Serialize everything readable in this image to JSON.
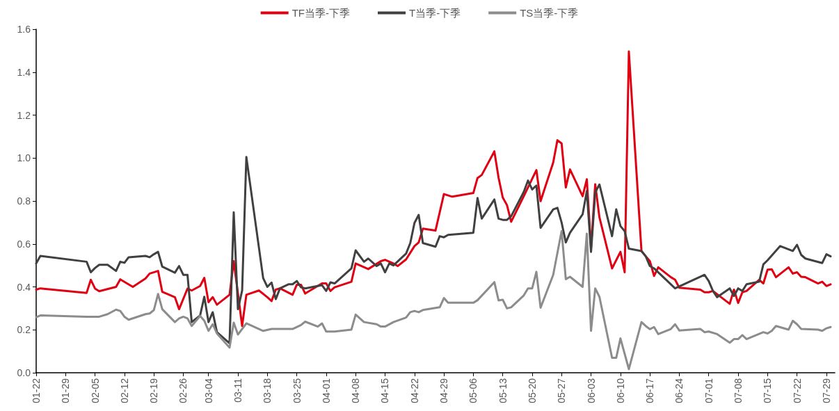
{
  "chart_data": {
    "type": "line",
    "legend": "top",
    "grid": false,
    "marker": "none",
    "line_style": "solid",
    "xlim": [
      "--01-22",
      "--07-31"
    ],
    "xticks": [
      {
        "value": "--01-22",
        "label": "01-22"
      },
      {
        "value": "--01-29",
        "label": "01-29"
      },
      {
        "value": "--02-05",
        "label": "02-05"
      },
      {
        "value": "--02-12",
        "label": "02-12"
      },
      {
        "value": "--02-19",
        "label": "02-19"
      },
      {
        "value": "--02-26",
        "label": "02-26"
      },
      {
        "value": "--03-04",
        "label": "03-04"
      },
      {
        "value": "--03-11",
        "label": "03-11"
      },
      {
        "value": "--03-18",
        "label": "03-18"
      },
      {
        "value": "--03-25",
        "label": "03-25"
      },
      {
        "value": "--04-01",
        "label": "04-01"
      },
      {
        "value": "--04-08",
        "label": "04-08"
      },
      {
        "value": "--04-15",
        "label": "04-15"
      },
      {
        "value": "--04-22",
        "label": "04-22"
      },
      {
        "value": "--04-29",
        "label": "04-29"
      },
      {
        "value": "--05-06",
        "label": "05-06"
      },
      {
        "value": "--05-13",
        "label": "05-13"
      },
      {
        "value": "--05-20",
        "label": "05-20"
      },
      {
        "value": "--05-27",
        "label": "05-27"
      },
      {
        "value": "--06-03",
        "label": "06-03"
      },
      {
        "value": "--06-10",
        "label": "06-10"
      },
      {
        "value": "--06-17",
        "label": "06-17"
      },
      {
        "value": "--06-24",
        "label": "06-24"
      },
      {
        "value": "--07-01",
        "label": "07-01"
      },
      {
        "value": "--07-08",
        "label": "07-08"
      },
      {
        "value": "--07-15",
        "label": "07-15"
      },
      {
        "value": "--07-22",
        "label": "07-22"
      },
      {
        "value": "--07-29",
        "label": "07-29"
      }
    ],
    "ylim": [
      0,
      1.6
    ],
    "yticks": [
      {
        "value": 0,
        "label": "0.0"
      },
      {
        "value": 0.2,
        "label": "0.2"
      },
      {
        "value": 0.4,
        "label": "0.4"
      },
      {
        "value": 0.6,
        "label": "0.6"
      },
      {
        "value": 0.8,
        "label": "0.8"
      },
      {
        "value": 1,
        "label": "1.0"
      },
      {
        "value": 1.2,
        "label": "1.2"
      },
      {
        "value": 1.4,
        "label": "1.4"
      },
      {
        "value": 1.6,
        "label": "1.6"
      }
    ],
    "series": [
      {
        "name": "TF当季-下季",
        "color": "#e00012",
        "x": [
          "--01-22",
          "--01-23",
          "--02-03",
          "--02-04",
          "--02-05",
          "--02-06",
          "--02-10",
          "--02-11",
          "--02-14",
          "--02-17",
          "--02-18",
          "--02-20",
          "--02-21",
          "--02-24",
          "--02-25",
          "--02-27",
          "--02-28",
          "--03-02",
          "--03-03",
          "--03-04",
          "--03-05",
          "--03-06",
          "--03-09",
          "--03-10",
          "--03-12",
          "--03-13",
          "--03-16",
          "--03-18",
          "--03-19",
          "--03-20",
          "--03-21",
          "--03-24",
          "--03-25",
          "--03-26",
          "--03-27",
          "--03-31",
          "--04-01",
          "--04-02",
          "--04-03",
          "--04-07",
          "--04-08",
          "--04-11",
          "--04-14",
          "--04-15",
          "--04-17",
          "--04-18",
          "--04-20",
          "--04-22",
          "--04-23",
          "--04-24",
          "--04-27",
          "--04-29",
          "--05-01",
          "--05-06",
          "--05-07",
          "--05-08",
          "--05-11",
          "--05-12",
          "--05-13",
          "--05-14",
          "--05-15",
          "--05-18",
          "--05-21",
          "--05-22",
          "--05-25",
          "--05-26",
          "--05-27",
          "--05-28",
          "--05-29",
          "--06-01",
          "--06-02",
          "--06-03",
          "--06-04",
          "--06-05",
          "--06-08",
          "--06-10",
          "--06-11",
          "--06-12",
          "--06-15",
          "--06-16",
          "--06-17",
          "--06-18",
          "--06-19",
          "--06-22",
          "--06-23",
          "--06-24",
          "--06-29",
          "--06-30",
          "--07-01",
          "--07-02",
          "--07-06",
          "--07-07",
          "--07-08",
          "--07-09",
          "--07-10",
          "--07-13",
          "--07-14",
          "--07-15",
          "--07-16",
          "--07-17",
          "--07-20",
          "--07-21",
          "--07-22",
          "--07-23",
          "--07-24",
          "--07-27",
          "--07-28",
          "--07-29",
          "--07-30"
        ],
        "values": [
          0.387,
          0.393,
          0.372,
          0.433,
          0.392,
          0.38,
          0.4,
          0.435,
          0.4,
          0.439,
          0.462,
          0.474,
          0.377,
          0.352,
          0.296,
          0.392,
          0.383,
          0.404,
          0.442,
          0.329,
          0.352,
          0.317,
          0.363,
          0.52,
          0.218,
          0.363,
          0.383,
          0.352,
          0.334,
          0.387,
          0.393,
          0.363,
          0.41,
          0.41,
          0.369,
          0.416,
          0.416,
          0.381,
          0.398,
          0.424,
          0.509,
          0.483,
          0.52,
          0.526,
          0.509,
          0.497,
          0.528,
          0.59,
          0.607,
          0.671,
          0.662,
          0.832,
          0.82,
          0.837,
          0.907,
          0.921,
          1.031,
          0.909,
          0.816,
          0.781,
          0.703,
          0.822,
          0.944,
          0.799,
          0.979,
          1.083,
          1.068,
          0.863,
          0.947,
          0.822,
          0.901,
          0.58,
          0.878,
          0.724,
          0.486,
          0.563,
          0.468,
          1.496,
          0.567,
          0.543,
          0.52,
          0.451,
          0.491,
          0.445,
          0.433,
          0.396,
          0.387,
          0.375,
          0.375,
          0.381,
          0.321,
          0.387,
          0.325,
          0.375,
          0.381,
          0.433,
          0.416,
          0.48,
          0.482,
          0.445,
          0.491,
          0.462,
          0.468,
          0.447,
          0.445,
          0.416,
          0.424,
          0.404,
          0.412
        ]
      },
      {
        "name": "T当季-下季",
        "color": "#404040",
        "x": [
          "--01-22",
          "--01-23",
          "--02-03",
          "--02-04",
          "--02-05",
          "--02-06",
          "--02-08",
          "--02-10",
          "--02-11",
          "--02-12",
          "--02-13",
          "--02-17",
          "--02-18",
          "--02-19",
          "--02-20",
          "--02-21",
          "--02-24",
          "--02-25",
          "--02-26",
          "--02-27",
          "--02-28",
          "--03-02",
          "--03-03",
          "--03-04",
          "--03-05",
          "--03-06",
          "--03-09",
          "--03-10",
          "--03-11",
          "--03-12",
          "--03-13",
          "--03-17",
          "--03-18",
          "--03-19",
          "--03-20",
          "--03-21",
          "--03-23",
          "--03-24",
          "--03-25",
          "--03-26",
          "--03-27",
          "--03-31",
          "--04-01",
          "--04-02",
          "--04-03",
          "--04-07",
          "--04-08",
          "--04-10",
          "--04-11",
          "--04-13",
          "--04-14",
          "--04-15",
          "--04-16",
          "--04-17",
          "--04-20",
          "--04-21",
          "--04-22",
          "--04-23",
          "--04-24",
          "--04-27",
          "--04-28",
          "--04-29",
          "--04-30",
          "--05-06",
          "--05-07",
          "--05-08",
          "--05-11",
          "--05-12",
          "--05-13",
          "--05-14",
          "--05-15",
          "--05-18",
          "--05-19",
          "--05-20",
          "--05-21",
          "--05-22",
          "--05-25",
          "--05-26",
          "--05-27",
          "--05-28",
          "--05-29",
          "--06-01",
          "--06-02",
          "--06-03",
          "--06-04",
          "--06-05",
          "--06-08",
          "--06-09",
          "--06-10",
          "--06-11",
          "--06-12",
          "--06-15",
          "--06-16",
          "--06-17",
          "--06-18",
          "--06-23",
          "--06-30",
          "--07-01",
          "--07-02",
          "--07-03",
          "--07-06",
          "--07-07",
          "--07-08",
          "--07-09",
          "--07-10",
          "--07-13",
          "--07-14",
          "--07-15",
          "--07-18",
          "--07-21",
          "--07-22",
          "--07-23",
          "--07-24",
          "--07-28",
          "--07-29",
          "--07-30"
        ],
        "values": [
          0.509,
          0.544,
          0.517,
          0.468,
          0.488,
          0.503,
          0.503,
          0.474,
          0.517,
          0.512,
          0.538,
          0.544,
          0.538,
          0.552,
          0.563,
          0.494,
          0.466,
          0.497,
          0.456,
          0.456,
          0.236,
          0.267,
          0.354,
          0.236,
          0.282,
          0.189,
          0.137,
          0.747,
          0.296,
          0.383,
          1.005,
          0.441,
          0.4,
          0.42,
          0.343,
          0.393,
          0.412,
          0.412,
          0.427,
          0.398,
          0.393,
          0.408,
          0.381,
          0.421,
          0.416,
          0.486,
          0.57,
          0.517,
          0.532,
          0.497,
          0.509,
          0.468,
          0.509,
          0.5,
          0.555,
          0.604,
          0.698,
          0.735,
          0.604,
          0.587,
          0.636,
          0.631,
          0.642,
          0.652,
          0.814,
          0.718,
          0.807,
          0.718,
          0.712,
          0.712,
          0.729,
          0.842,
          0.895,
          0.854,
          0.872,
          0.675,
          0.761,
          0.768,
          0.7,
          0.607,
          0.652,
          0.738,
          0.846,
          0.563,
          0.84,
          0.877,
          0.636,
          0.761,
          0.683,
          0.66,
          0.578,
          0.567,
          0.543,
          0.497,
          0.486,
          0.393,
          0.456,
          0.427,
          0.381,
          0.352,
          0.393,
          0.358,
          0.393,
          0.381,
          0.412,
          0.424,
          0.505,
          0.524,
          0.59,
          0.567,
          0.596,
          0.549,
          0.532,
          0.511,
          0.552,
          0.542
        ]
      },
      {
        "name": "TS当季-下季",
        "color": "#8c8c8c",
        "x": [
          "--01-22",
          "--01-23",
          "--02-03",
          "--02-06",
          "--02-08",
          "--02-10",
          "--02-11",
          "--02-12",
          "--02-13",
          "--02-17",
          "--02-18",
          "--02-19",
          "--02-20",
          "--02-21",
          "--02-24",
          "--02-25",
          "--02-26",
          "--02-27",
          "--02-28",
          "--03-02",
          "--03-03",
          "--03-04",
          "--03-05",
          "--03-06",
          "--03-09",
          "--03-10",
          "--03-11",
          "--03-13",
          "--03-17",
          "--03-19",
          "--03-23",
          "--03-24",
          "--03-26",
          "--03-27",
          "--03-30",
          "--03-31",
          "--04-01",
          "--04-03",
          "--04-07",
          "--04-08",
          "--04-10",
          "--04-13",
          "--04-14",
          "--04-15",
          "--04-17",
          "--04-20",
          "--04-21",
          "--04-22",
          "--04-23",
          "--04-24",
          "--04-28",
          "--04-29",
          "--04-30",
          "--05-06",
          "--05-07",
          "--05-11",
          "--05-12",
          "--05-13",
          "--05-14",
          "--05-15",
          "--05-18",
          "--05-19",
          "--05-20",
          "--05-21",
          "--05-22",
          "--05-25",
          "--05-27",
          "--05-28",
          "--05-29",
          "--06-01",
          "--06-02",
          "--06-03",
          "--06-04",
          "--06-05",
          "--06-08",
          "--06-09",
          "--06-10",
          "--06-12",
          "--06-15",
          "--06-16",
          "--06-17",
          "--06-18",
          "--06-19",
          "--06-22",
          "--06-23",
          "--06-24",
          "--06-29",
          "--06-30",
          "--07-01",
          "--07-03",
          "--07-06",
          "--07-07",
          "--07-08",
          "--07-09",
          "--07-10",
          "--07-14",
          "--07-15",
          "--07-16",
          "--07-17",
          "--07-20",
          "--07-21",
          "--07-22",
          "--07-23",
          "--07-27",
          "--07-28",
          "--07-29",
          "--07-30"
        ],
        "values": [
          0.259,
          0.267,
          0.261,
          0.261,
          0.273,
          0.294,
          0.288,
          0.261,
          0.247,
          0.273,
          0.276,
          0.292,
          0.367,
          0.296,
          0.236,
          0.253,
          0.261,
          0.253,
          0.218,
          0.265,
          0.242,
          0.195,
          0.226,
          0.183,
          0.117,
          0.233,
          0.178,
          0.23,
          0.195,
          0.204,
          0.204,
          0.204,
          0.222,
          0.238,
          0.215,
          0.23,
          0.192,
          0.192,
          0.201,
          0.271,
          0.236,
          0.226,
          0.215,
          0.215,
          0.236,
          0.257,
          0.282,
          0.288,
          0.282,
          0.292,
          0.305,
          0.348,
          0.326,
          0.326,
          0.338,
          0.422,
          0.337,
          0.34,
          0.3,
          0.305,
          0.36,
          0.393,
          0.393,
          0.47,
          0.303,
          0.456,
          0.66,
          0.436,
          0.447,
          0.4,
          0.648,
          0.195,
          0.393,
          0.354,
          0.07,
          0.07,
          0.16,
          0.017,
          0.236,
          0.218,
          0.203,
          0.213,
          0.18,
          0.204,
          0.226,
          0.197,
          0.204,
          0.189,
          0.192,
          0.18,
          0.14,
          0.157,
          0.157,
          0.175,
          0.157,
          0.189,
          0.183,
          0.195,
          0.218,
          0.201,
          0.242,
          0.226,
          0.204,
          0.201,
          0.195,
          0.207,
          0.213
        ]
      }
    ]
  }
}
